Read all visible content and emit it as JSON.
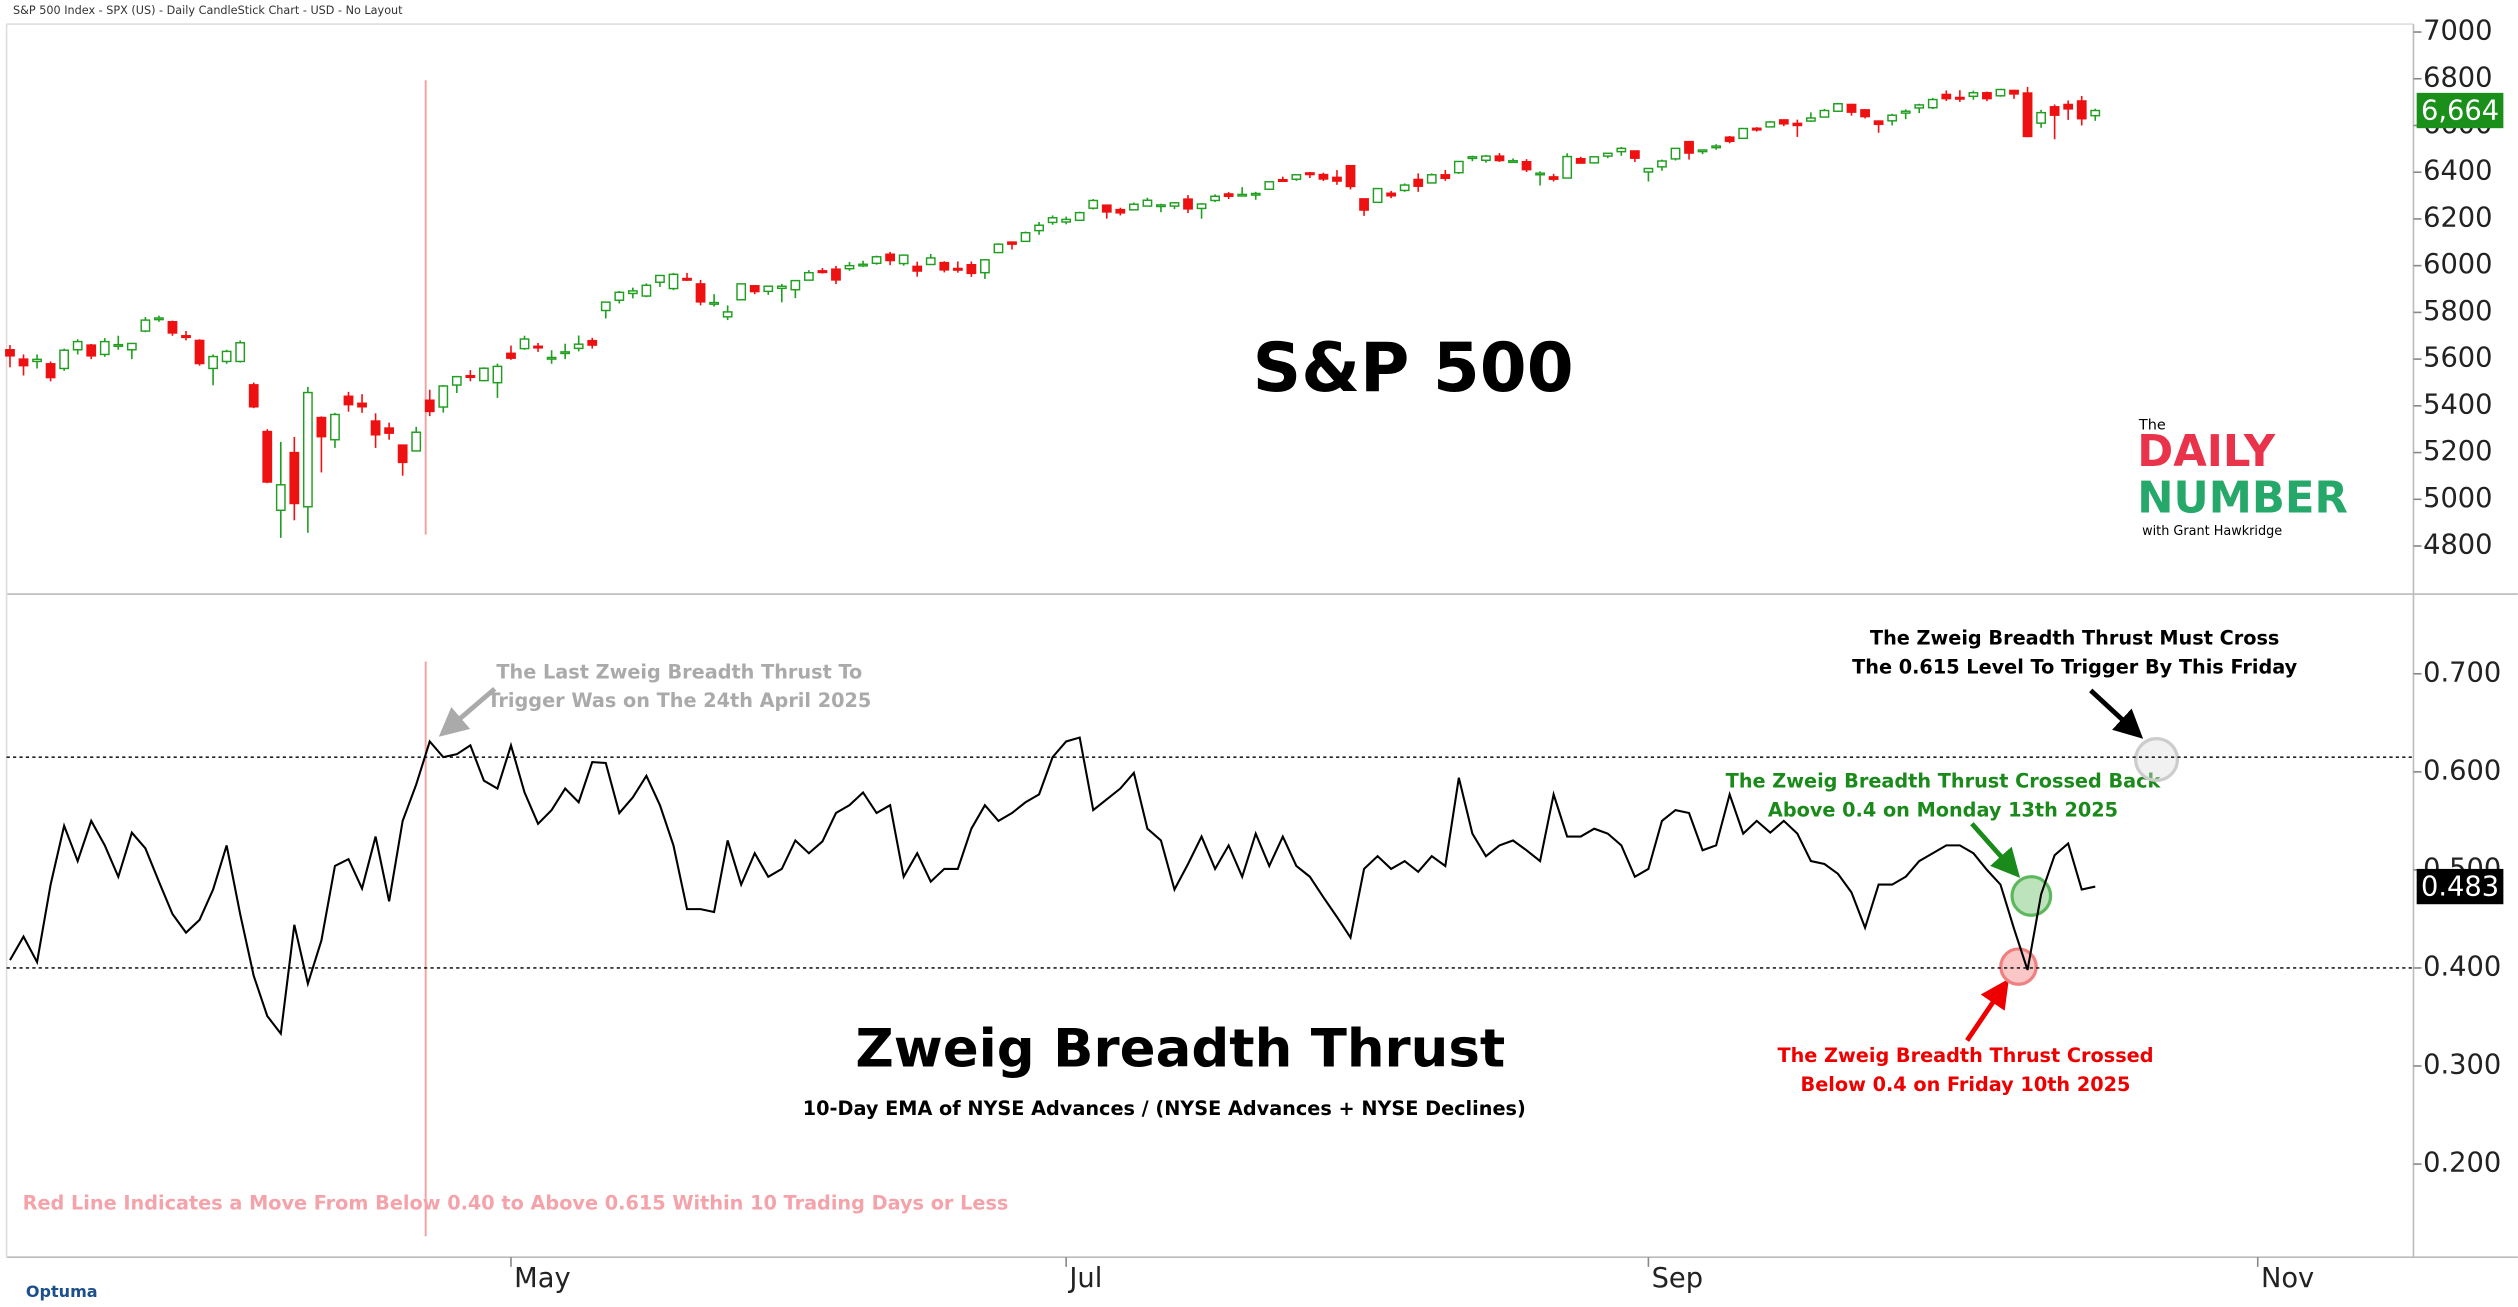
{
  "chart_data": [
    {
      "type": "candlestick",
      "title": "S&P 500",
      "source": "S&P 500 Index - SPX (US) - Daily CandleStick Chart - USD - No Layout",
      "ohlc": [
        [
          5640,
          5660,
          5565,
          5614
        ],
        [
          5600,
          5620,
          5530,
          5572
        ],
        [
          5590,
          5620,
          5560,
          5599
        ],
        [
          5580,
          5590,
          5505,
          5521
        ],
        [
          5560,
          5645,
          5550,
          5638
        ],
        [
          5640,
          5685,
          5620,
          5675
        ],
        [
          5660,
          5665,
          5600,
          5614
        ],
        [
          5620,
          5690,
          5610,
          5675
        ],
        [
          5660,
          5700,
          5640,
          5662
        ],
        [
          5640,
          5670,
          5600,
          5667
        ],
        [
          5720,
          5780,
          5715,
          5767
        ],
        [
          5770,
          5786,
          5760,
          5776
        ],
        [
          5760,
          5765,
          5700,
          5712
        ],
        [
          5700,
          5720,
          5680,
          5693
        ],
        [
          5680,
          5685,
          5572,
          5581
        ],
        [
          5560,
          5620,
          5488,
          5611
        ],
        [
          5590,
          5640,
          5580,
          5633
        ],
        [
          5590,
          5680,
          5585,
          5670
        ],
        [
          5490,
          5500,
          5390,
          5396
        ],
        [
          5290,
          5300,
          5069,
          5074
        ],
        [
          4953,
          5246,
          4835,
          5062
        ],
        [
          5200,
          5267,
          4910,
          4982
        ],
        [
          4968,
          5481,
          4857,
          5457
        ],
        [
          5350,
          5355,
          5115,
          5268
        ],
        [
          5255,
          5370,
          5220,
          5363
        ],
        [
          5441,
          5460,
          5375,
          5405
        ],
        [
          5411,
          5450,
          5370,
          5396
        ],
        [
          5335,
          5368,
          5220,
          5276
        ],
        [
          5305,
          5328,
          5255,
          5283
        ],
        [
          5232,
          5232,
          5101,
          5158
        ],
        [
          5207,
          5310,
          5207,
          5287
        ],
        [
          5424,
          5469,
          5356,
          5376
        ],
        [
          5395,
          5489,
          5371,
          5485
        ],
        [
          5489,
          5528,
          5455,
          5525
        ],
        [
          5529,
          5553,
          5505,
          5528
        ],
        [
          5508,
          5565,
          5505,
          5561
        ],
        [
          5499,
          5581,
          5434,
          5569
        ],
        [
          5625,
          5658,
          5597,
          5604
        ],
        [
          5645,
          5700,
          5640,
          5686
        ],
        [
          5655,
          5669,
          5631,
          5650
        ],
        [
          5605,
          5638,
          5580,
          5607
        ],
        [
          5626,
          5666,
          5600,
          5631
        ],
        [
          5646,
          5701,
          5633,
          5664
        ],
        [
          5679,
          5691,
          5645,
          5660
        ],
        [
          5808,
          5846,
          5774,
          5844
        ],
        [
          5852,
          5892,
          5838,
          5886
        ],
        [
          5881,
          5906,
          5860,
          5892
        ],
        [
          5870,
          5924,
          5865,
          5916
        ],
        [
          5929,
          5959,
          5909,
          5958
        ],
        [
          5902,
          5969,
          5895,
          5963
        ],
        [
          5945,
          5969,
          5935,
          5940
        ],
        [
          5922,
          5939,
          5830,
          5845
        ],
        [
          5842,
          5878,
          5825,
          5842
        ],
        [
          5781,
          5830,
          5767,
          5802
        ],
        [
          5854,
          5924,
          5854,
          5922
        ],
        [
          5914,
          5916,
          5878,
          5889
        ],
        [
          5890,
          5915,
          5875,
          5912
        ],
        [
          5903,
          5922,
          5843,
          5912
        ],
        [
          5897,
          5939,
          5861,
          5936
        ],
        [
          5938,
          5981,
          5938,
          5970
        ],
        [
          5978,
          5990,
          5966,
          5971
        ],
        [
          5985,
          5999,
          5921,
          5939
        ],
        [
          5987,
          6016,
          5978,
          6000
        ],
        [
          6005,
          6021,
          5994,
          6006
        ],
        [
          6010,
          6043,
          6004,
          6038
        ],
        [
          6049,
          6059,
          6002,
          6022
        ],
        [
          6009,
          6046,
          6000,
          6045
        ],
        [
          5997,
          6017,
          5953,
          5977
        ],
        [
          6005,
          6050,
          6004,
          6033
        ],
        [
          6013,
          6019,
          5971,
          5982
        ],
        [
          5988,
          6018,
          5970,
          5981
        ],
        [
          6004,
          6018,
          5952,
          5967
        ],
        [
          5970,
          6028,
          5943,
          6025
        ],
        [
          6056,
          6096,
          6054,
          6092
        ],
        [
          6101,
          6101,
          6069,
          6092
        ],
        [
          6104,
          6146,
          6104,
          6141
        ],
        [
          6150,
          6187,
          6132,
          6173
        ],
        [
          6185,
          6215,
          6175,
          6205
        ],
        [
          6187,
          6210,
          6177,
          6198
        ],
        [
          6194,
          6231,
          6194,
          6227
        ],
        [
          6246,
          6285,
          6240,
          6279
        ],
        [
          6259,
          6262,
          6201,
          6230
        ],
        [
          6240,
          6248,
          6215,
          6226
        ],
        [
          6239,
          6270,
          6236,
          6263
        ],
        [
          6255,
          6291,
          6254,
          6280
        ],
        [
          6256,
          6265,
          6229,
          6260
        ],
        [
          6255,
          6272,
          6242,
          6269
        ],
        [
          6285,
          6302,
          6225,
          6243
        ],
        [
          6245,
          6268,
          6201,
          6264
        ],
        [
          6279,
          6305,
          6272,
          6297
        ],
        [
          6307,
          6315,
          6285,
          6297
        ],
        [
          6304,
          6336,
          6303,
          6305
        ],
        [
          6307,
          6316,
          6282,
          6309
        ],
        [
          6327,
          6361,
          6325,
          6359
        ],
        [
          6368,
          6381,
          6360,
          6363
        ],
        [
          6370,
          6390,
          6363,
          6389
        ],
        [
          6397,
          6401,
          6375,
          6390
        ],
        [
          6390,
          6398,
          6362,
          6371
        ],
        [
          6378,
          6409,
          6346,
          6362
        ],
        [
          6428,
          6428,
          6326,
          6339
        ],
        [
          6286,
          6287,
          6213,
          6238
        ],
        [
          6271,
          6330,
          6271,
          6330
        ],
        [
          6310,
          6320,
          6289,
          6299
        ],
        [
          6322,
          6352,
          6316,
          6345
        ],
        [
          6369,
          6395,
          6316,
          6340
        ],
        [
          6354,
          6395,
          6352,
          6389
        ],
        [
          6389,
          6410,
          6363,
          6374
        ],
        [
          6398,
          6446,
          6393,
          6446
        ],
        [
          6459,
          6471,
          6447,
          6466
        ],
        [
          6451,
          6474,
          6441,
          6469
        ],
        [
          6469,
          6482,
          6444,
          6450
        ],
        [
          6445,
          6459,
          6442,
          6449
        ],
        [
          6445,
          6456,
          6401,
          6411
        ],
        [
          6396,
          6404,
          6343,
          6396
        ],
        [
          6380,
          6393,
          6360,
          6370
        ],
        [
          6375,
          6481,
          6375,
          6467
        ],
        [
          6458,
          6466,
          6438,
          6439
        ],
        [
          6440,
          6467,
          6437,
          6466
        ],
        [
          6469,
          6481,
          6460,
          6481
        ],
        [
          6488,
          6508,
          6470,
          6502
        ],
        [
          6491,
          6491,
          6444,
          6460
        ],
        [
          6401,
          6417,
          6360,
          6416
        ],
        [
          6423,
          6454,
          6406,
          6448
        ],
        [
          6457,
          6503,
          6450,
          6502
        ],
        [
          6531,
          6533,
          6454,
          6482
        ],
        [
          6490,
          6497,
          6477,
          6495
        ],
        [
          6506,
          6520,
          6496,
          6512
        ],
        [
          6550,
          6555,
          6524,
          6532
        ],
        [
          6545,
          6588,
          6545,
          6587
        ],
        [
          6588,
          6593,
          6574,
          6584
        ],
        [
          6594,
          6619,
          6593,
          6615
        ],
        [
          6624,
          6626,
          6597,
          6607
        ],
        [
          6609,
          6625,
          6551,
          6600
        ],
        [
          6619,
          6656,
          6615,
          6632
        ],
        [
          6636,
          6671,
          6634,
          6664
        ],
        [
          6661,
          6697,
          6658,
          6693
        ],
        [
          6690,
          6693,
          6642,
          6657
        ],
        [
          6667,
          6670,
          6630,
          6638
        ],
        [
          6619,
          6622,
          6569,
          6605
        ],
        [
          6620,
          6650,
          6600,
          6644
        ],
        [
          6653,
          6669,
          6627,
          6661
        ],
        [
          6675,
          6693,
          6653,
          6688
        ],
        [
          6676,
          6718,
          6670,
          6711
        ],
        [
          6733,
          6750,
          6705,
          6715
        ],
        [
          6720,
          6751,
          6701,
          6716
        ],
        [
          6725,
          6749,
          6710,
          6740
        ],
        [
          6740,
          6745,
          6704,
          6715
        ],
        [
          6727,
          6757,
          6723,
          6754
        ],
        [
          6750,
          6753,
          6714,
          6735
        ],
        [
          6739,
          6765,
          6550,
          6553
        ],
        [
          6610,
          6667,
          6590,
          6655
        ],
        [
          6680,
          6690,
          6541,
          6644
        ],
        [
          6690,
          6707,
          6624,
          6671
        ],
        [
          6705,
          6726,
          6600,
          6629
        ],
        [
          6642,
          6672,
          6620,
          6664
        ]
      ],
      "last_label": "6,664",
      "up_color": "#1f9e1f",
      "down_color": "#ee1111",
      "xlim": [
        -0.25,
        177.5
      ],
      "ylim": [
        4608,
        7034
      ],
      "yticks": [
        4800,
        5000,
        5200,
        5400,
        5600,
        5800,
        6000,
        6200,
        6400,
        6600,
        6800,
        7000
      ]
    },
    {
      "type": "line",
      "title": "Zweig Breadth Thrust",
      "subtitle": "10-Day EMA of NYSE Advances / (NYSE Advances + NYSE Declines)",
      "values": [
        0.408,
        0.432,
        0.406,
        0.485,
        0.545,
        0.509,
        0.55,
        0.525,
        0.493,
        0.538,
        0.522,
        0.488,
        0.455,
        0.436,
        0.449,
        0.48,
        0.525,
        0.455,
        0.392,
        0.351,
        0.333,
        0.444,
        0.384,
        0.428,
        0.504,
        0.511,
        0.481,
        0.534,
        0.468,
        0.55,
        0.587,
        0.631,
        0.615,
        0.618,
        0.627,
        0.591,
        0.583,
        0.627,
        0.579,
        0.547,
        0.561,
        0.583,
        0.569,
        0.61,
        0.609,
        0.558,
        0.574,
        0.596,
        0.566,
        0.525,
        0.46,
        0.46,
        0.457,
        0.53,
        0.485,
        0.517,
        0.493,
        0.501,
        0.53,
        0.517,
        0.529,
        0.558,
        0.566,
        0.579,
        0.558,
        0.566,
        0.493,
        0.517,
        0.488,
        0.501,
        0.501,
        0.542,
        0.566,
        0.55,
        0.558,
        0.569,
        0.577,
        0.615,
        0.631,
        0.635,
        0.561,
        0.572,
        0.583,
        0.599,
        0.542,
        0.53,
        0.48,
        0.506,
        0.534,
        0.501,
        0.525,
        0.493,
        0.537,
        0.504,
        0.534,
        0.504,
        0.493,
        0.472,
        0.452,
        0.431,
        0.501,
        0.514,
        0.501,
        0.509,
        0.498,
        0.514,
        0.504,
        0.594,
        0.537,
        0.514,
        0.525,
        0.53,
        0.52,
        0.509,
        0.577,
        0.534,
        0.534,
        0.542,
        0.537,
        0.525,
        0.493,
        0.501,
        0.55,
        0.561,
        0.558,
        0.52,
        0.525,
        0.577,
        0.537,
        0.55,
        0.538,
        0.55,
        0.537,
        0.509,
        0.506,
        0.496,
        0.477,
        0.441,
        0.485,
        0.485,
        0.493,
        0.509,
        0.517,
        0.525,
        0.525,
        0.517,
        0.5,
        0.485,
        0.44,
        0.398,
        0.475,
        0.515,
        0.527,
        0.48,
        0.483
      ],
      "last_label": "0.483",
      "color": "#000000",
      "hlines": [
        0.615,
        0.4
      ],
      "xlim": [
        -0.25,
        177.5
      ],
      "xticks": [
        {
          "value": 37,
          "label": "May"
        },
        {
          "value": 78,
          "label": "Jul"
        },
        {
          "value": 121,
          "label": "Sep"
        },
        {
          "value": 166,
          "label": "Nov"
        }
      ],
      "ylim": [
        0.105,
        0.778
      ],
      "yticks": [
        {
          "value": 0.2,
          "label": "0.200"
        },
        {
          "value": 0.3,
          "label": "0.300"
        },
        {
          "value": 0.4,
          "label": "0.400"
        },
        {
          "value": 0.5,
          "label": "0.500"
        },
        {
          "value": 0.6,
          "label": "0.600"
        },
        {
          "value": 0.7,
          "label": "0.700"
        }
      ],
      "annotations": [
        [
          "The Last Zweig Breadth Thrust To",
          "Trigger Was on The 24th April 2025"
        ],
        [
          "The Zweig Breadth Thrust Must Cross",
          "The 0.615 Level To Trigger By This Friday"
        ],
        [
          "The Zweig Breadth Thrust Crossed Back",
          "Above 0.4 on Monday 13th 2025"
        ],
        [
          "The Zweig Breadth Thrust Crossed",
          "Below 0.4 on Friday 10th 2025"
        ]
      ],
      "note": "Red Line Indicates a Move From Below 0.40 to Above 0.615 Within 10 Trading Days or Less"
    }
  ],
  "logo": {
    "the": "The",
    "daily": "DAILY",
    "number": "NUMBER",
    "byline": "with Grant Hawkridge"
  },
  "footer": "Optuma"
}
